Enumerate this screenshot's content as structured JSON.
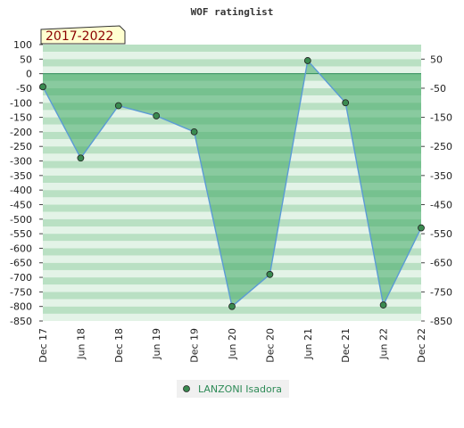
{
  "chart_data": {
    "type": "area",
    "title": "WOF ratinglist",
    "period_label": "2017-2022",
    "categories": [
      "Dec 17",
      "Jun 18",
      "Dec 18",
      "Jun 19",
      "Dec 19",
      "Jun 20",
      "Dec 20",
      "Jun 21",
      "Dec 21",
      "Jun 22",
      "Dec 22"
    ],
    "series": [
      {
        "name": "LANZONI Isadora",
        "values": [
          -45,
          -290,
          -110,
          -145,
          -200,
          -800,
          -690,
          45,
          -100,
          -795,
          -530
        ]
      }
    ],
    "ylim": [
      -850,
      100
    ],
    "y_ticks_left": [
      "100",
      "50",
      "0",
      "-50",
      "-100",
      "-150",
      "-200",
      "-250",
      "-300",
      "-350",
      "-400",
      "-450",
      "-500",
      "-550",
      "-600",
      "-650",
      "-700",
      "-750",
      "-800",
      "-850"
    ],
    "y_ticks_right": [
      "50",
      "-50",
      "-150",
      "-250",
      "-350",
      "-450",
      "-550",
      "-650",
      "-750",
      "-850"
    ],
    "legend_position": "bottom",
    "colors": {
      "area_fill": "#3fa864",
      "line": "#5b9bd5",
      "marker": "#3a8a50",
      "band_dark": "#b9e0c3",
      "band_light": "#e3f3e7",
      "zero_line": "#2e8b57"
    }
  }
}
